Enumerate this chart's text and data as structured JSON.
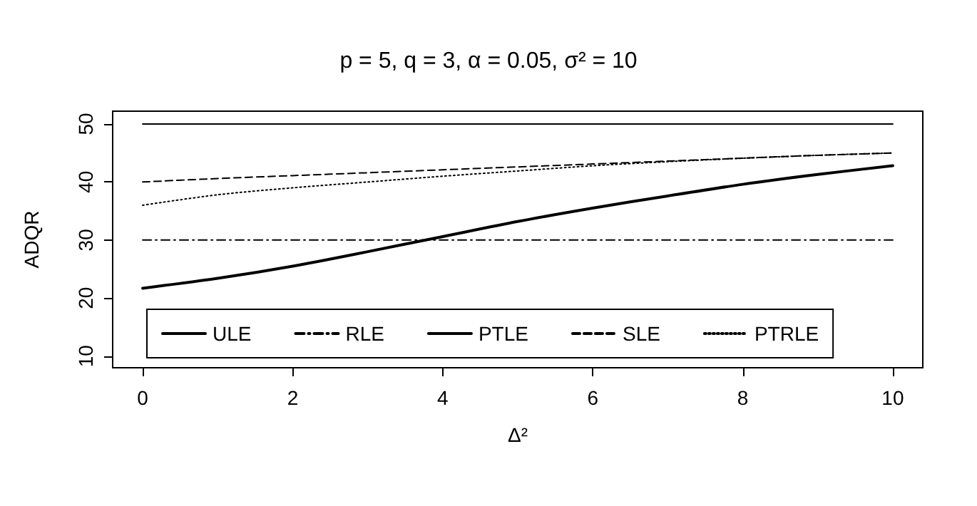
{
  "chart_data": {
    "type": "line",
    "title": "p = 5, q = 3, α = 0.05, σ² = 10",
    "xlabel": "Δ²",
    "ylabel": "ADQR",
    "x": [
      0,
      1,
      2,
      3,
      4,
      5,
      6,
      7,
      8,
      9,
      10
    ],
    "series": [
      {
        "name": "ULE",
        "color": "#000000",
        "line_style": "solid",
        "values": [
          50,
          50,
          50,
          50,
          50,
          50,
          50,
          50,
          50,
          50,
          50
        ]
      },
      {
        "name": "RLE",
        "color": "#000000",
        "line_style": "dashed",
        "values": [
          30,
          30,
          30,
          30,
          30,
          30,
          30,
          30,
          30,
          30,
          30
        ]
      },
      {
        "name": "PTLE",
        "color": "#000000",
        "line_style": "solid",
        "values": [
          21.7,
          23.4,
          25.5,
          28.0,
          30.6,
          33.2,
          35.5,
          37.6,
          39.6,
          41.3,
          42.8
        ]
      },
      {
        "name": "SLE",
        "color": "#000000",
        "line_style": "dashed",
        "values": [
          40,
          40.6,
          41.1,
          41.6,
          42.1,
          42.6,
          43.1,
          43.6,
          44.1,
          44.6,
          45.0
        ]
      },
      {
        "name": "PTRLE",
        "color": "#000000",
        "line_style": "dotted",
        "values": [
          36,
          37.8,
          39.0,
          40.0,
          41.0,
          41.9,
          42.8,
          43.5,
          44.1,
          44.6,
          45.0
        ]
      }
    ],
    "xlim": [
      -0.4,
      10.4
    ],
    "xticks": [
      0,
      2,
      4,
      6,
      8,
      10
    ],
    "ylim": [
      8,
      52.2
    ],
    "yticks": [
      10,
      20,
      30,
      40,
      50
    ],
    "grid": false,
    "legend": "bottom",
    "marker": "none"
  }
}
